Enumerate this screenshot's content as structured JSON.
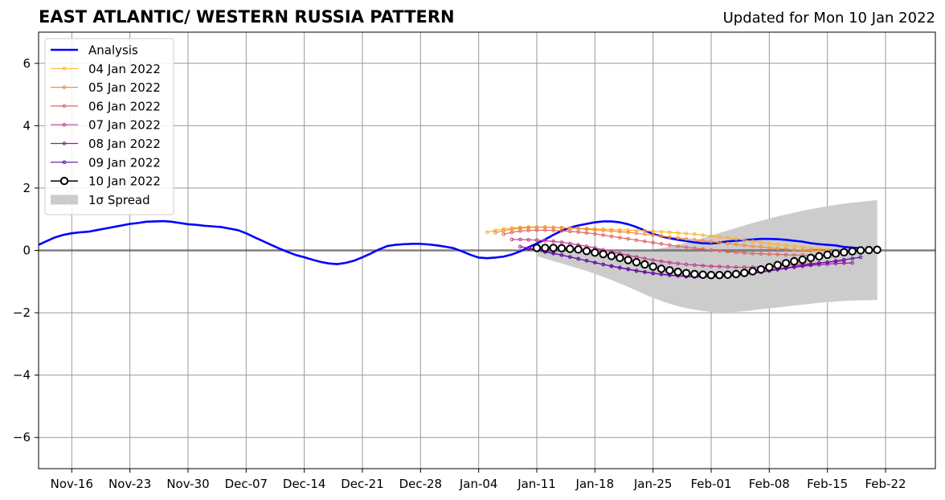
{
  "header": {
    "title": "EAST ATLANTIC/ WESTERN RUSSIA PATTERN",
    "updated": "Updated for Mon 10 Jan 2022"
  },
  "chart_data": {
    "type": "line",
    "x_axis": {
      "range": [
        "2021-11-12",
        "2022-02-28"
      ],
      "ticks": [
        "2021-11-16",
        "2021-11-23",
        "2021-11-30",
        "2021-12-07",
        "2021-12-14",
        "2021-12-21",
        "2021-12-28",
        "2022-01-04",
        "2022-01-11",
        "2022-01-18",
        "2022-01-25",
        "2022-02-01",
        "2022-02-08",
        "2022-02-15",
        "2022-02-22"
      ],
      "tick_labels": [
        "Nov-16",
        "Nov-23",
        "Nov-30",
        "Dec-07",
        "Dec-14",
        "Dec-21",
        "Dec-28",
        "Jan-04",
        "Jan-11",
        "Jan-18",
        "Jan-25",
        "Feb-01",
        "Feb-08",
        "Feb-15",
        "Feb-22"
      ]
    },
    "y_axis": {
      "range": [
        -7,
        7
      ],
      "ticks": [
        -6,
        -4,
        -2,
        0,
        2,
        4,
        6
      ],
      "tick_labels": [
        "−6",
        "−4",
        "−2",
        "0",
        "2",
        "4",
        "6"
      ]
    },
    "grid": true,
    "zero_line": true,
    "legend_position": "top-left",
    "colors": {
      "analysis": "#0000ff",
      "04 Jan 2022": "#fcb428",
      "05 Jan 2022": "#f68a3f",
      "06 Jan 2022": "#e06363",
      "07 Jan 2022": "#c13a86",
      "08 Jan 2022": "#9c17a3",
      "09 Jan 2022": "#5a0fa8",
      "10 Jan 2022": "#000000",
      "spread": "#cccccc",
      "grid": "#999999"
    },
    "analysis": {
      "name": "Analysis",
      "start": "2021-11-12",
      "values": [
        0.18,
        0.3,
        0.42,
        0.5,
        0.55,
        0.58,
        0.6,
        0.65,
        0.7,
        0.75,
        0.8,
        0.85,
        0.88,
        0.92,
        0.93,
        0.94,
        0.92,
        0.88,
        0.84,
        0.82,
        0.79,
        0.77,
        0.75,
        0.7,
        0.65,
        0.55,
        0.42,
        0.3,
        0.18,
        0.06,
        -0.05,
        -0.15,
        -0.22,
        -0.3,
        -0.37,
        -0.42,
        -0.44,
        -0.4,
        -0.33,
        -0.22,
        -0.1,
        0.03,
        0.14,
        0.18,
        0.2,
        0.21,
        0.21,
        0.19,
        0.16,
        0.12,
        0.07,
        -0.03,
        -0.14,
        -0.23,
        -0.25,
        -0.23,
        -0.2,
        -0.13,
        -0.03,
        0.1,
        0.22,
        0.35,
        0.5,
        0.63,
        0.73,
        0.8,
        0.85,
        0.9,
        0.93,
        0.93,
        0.9,
        0.84,
        0.75,
        0.64,
        0.53,
        0.45,
        0.39,
        0.34,
        0.3,
        0.26,
        0.23,
        0.22,
        0.25,
        0.29,
        0.31,
        0.33,
        0.35,
        0.37,
        0.37,
        0.36,
        0.34,
        0.31,
        0.28,
        0.23,
        0.2,
        0.18,
        0.16,
        0.11,
        0.09,
        0.07
      ]
    },
    "forecasts": [
      {
        "name": "04 Jan 2022",
        "start": "2022-01-05",
        "values": [
          0.58,
          0.64,
          0.69,
          0.72,
          0.74,
          0.75,
          0.75,
          0.75,
          0.74,
          0.73,
          0.72,
          0.71,
          0.7,
          0.69,
          0.68,
          0.67,
          0.66,
          0.65,
          0.64,
          0.63,
          0.61,
          0.6,
          0.58,
          0.56,
          0.54,
          0.52,
          0.49,
          0.46,
          0.43,
          0.4,
          0.37,
          0.33,
          0.29,
          0.25,
          0.22,
          0.19,
          0.16,
          0.13,
          0.1,
          0.07,
          0.05,
          0.03
        ]
      },
      {
        "name": "05 Jan 2022",
        "start": "2022-01-06",
        "values": [
          0.57,
          0.63,
          0.68,
          0.71,
          0.73,
          0.74,
          0.74,
          0.73,
          0.72,
          0.71,
          0.7,
          0.68,
          0.66,
          0.64,
          0.62,
          0.6,
          0.58,
          0.55,
          0.52,
          0.49,
          0.46,
          0.43,
          0.4,
          0.37,
          0.34,
          0.31,
          0.28,
          0.25,
          0.22,
          0.19,
          0.16,
          0.13,
          0.11,
          0.08,
          0.06,
          0.04,
          0.02,
          0.01,
          0.0,
          -0.01,
          -0.02
        ]
      },
      {
        "name": "06 Jan 2022",
        "start": "2022-01-07",
        "values": [
          0.52,
          0.58,
          0.62,
          0.64,
          0.65,
          0.65,
          0.64,
          0.63,
          0.61,
          0.59,
          0.56,
          0.53,
          0.49,
          0.45,
          0.41,
          0.37,
          0.33,
          0.29,
          0.25,
          0.21,
          0.17,
          0.13,
          0.1,
          0.07,
          0.04,
          0.01,
          -0.02,
          -0.04,
          -0.06,
          -0.08,
          -0.1,
          -0.11,
          -0.12,
          -0.13,
          -0.14,
          -0.15,
          -0.15,
          -0.16,
          -0.16,
          -0.17,
          -0.17
        ]
      },
      {
        "name": "07 Jan 2022",
        "start": "2022-01-08",
        "values": [
          0.35,
          0.35,
          0.34,
          0.33,
          0.31,
          0.29,
          0.26,
          0.22,
          0.18,
          0.13,
          0.08,
          0.02,
          -0.04,
          -0.1,
          -0.16,
          -0.21,
          -0.26,
          -0.31,
          -0.35,
          -0.39,
          -0.42,
          -0.45,
          -0.47,
          -0.49,
          -0.51,
          -0.52,
          -0.53,
          -0.54,
          -0.54,
          -0.54,
          -0.53,
          -0.52,
          -0.5,
          -0.48,
          -0.46,
          -0.44,
          -0.42,
          -0.4,
          -0.38,
          -0.36,
          -0.34
        ]
      },
      {
        "name": "08 Jan 2022",
        "start": "2022-01-09",
        "values": [
          0.12,
          0.08,
          0.03,
          -0.03,
          -0.09,
          -0.15,
          -0.21,
          -0.27,
          -0.33,
          -0.39,
          -0.45,
          -0.51,
          -0.56,
          -0.61,
          -0.66,
          -0.7,
          -0.74,
          -0.77,
          -0.8,
          -0.82,
          -0.84,
          -0.85,
          -0.85,
          -0.85,
          -0.84,
          -0.82,
          -0.8,
          -0.77,
          -0.74,
          -0.7,
          -0.66,
          -0.62,
          -0.58,
          -0.54,
          -0.51,
          -0.48,
          -0.46,
          -0.44,
          -0.42,
          -0.41,
          -0.4
        ]
      },
      {
        "name": "09 Jan 2022",
        "start": "2022-01-10",
        "values": [
          0.05,
          0.0,
          -0.05,
          -0.1,
          -0.15,
          -0.21,
          -0.27,
          -0.33,
          -0.39,
          -0.45,
          -0.5,
          -0.55,
          -0.6,
          -0.65,
          -0.69,
          -0.73,
          -0.76,
          -0.79,
          -0.81,
          -0.83,
          -0.84,
          -0.84,
          -0.84,
          -0.83,
          -0.81,
          -0.79,
          -0.76,
          -0.72,
          -0.68,
          -0.64,
          -0.6,
          -0.56,
          -0.52,
          -0.48,
          -0.45,
          -0.41,
          -0.38,
          -0.34,
          -0.3,
          -0.26,
          -0.22
        ]
      },
      {
        "name": "10 Jan 2022",
        "start": "2022-01-11",
        "values": [
          0.08,
          0.08,
          0.08,
          0.07,
          0.05,
          0.03,
          -0.02,
          -0.07,
          -0.12,
          -0.18,
          -0.24,
          -0.31,
          -0.38,
          -0.45,
          -0.52,
          -0.59,
          -0.64,
          -0.69,
          -0.73,
          -0.76,
          -0.78,
          -0.79,
          -0.79,
          -0.78,
          -0.76,
          -0.72,
          -0.67,
          -0.61,
          -0.54,
          -0.47,
          -0.41,
          -0.35,
          -0.3,
          -0.24,
          -0.19,
          -0.14,
          -0.1,
          -0.06,
          -0.03,
          0.0,
          0.01,
          0.02
        ]
      }
    ],
    "spread": {
      "name": "1σ Spread",
      "start": "2022-01-11",
      "upper": [
        0.1,
        0.09,
        0.08,
        0.06,
        0.04,
        0.02,
        0.0,
        -0.02,
        -0.03,
        -0.04,
        -0.04,
        -0.03,
        -0.02,
        0.0,
        0.03,
        0.07,
        0.12,
        0.18,
        0.25,
        0.32,
        0.4,
        0.48,
        0.56,
        0.64,
        0.72,
        0.8,
        0.88,
        0.95,
        1.02,
        1.09,
        1.15,
        1.21,
        1.27,
        1.32,
        1.37,
        1.42,
        1.46,
        1.5,
        1.53,
        1.56,
        1.59,
        1.61
      ],
      "lower": [
        -0.18,
        -0.26,
        -0.34,
        -0.42,
        -0.5,
        -0.58,
        -0.66,
        -0.75,
        -0.85,
        -0.95,
        -1.06,
        -1.17,
        -1.29,
        -1.41,
        -1.52,
        -1.62,
        -1.71,
        -1.79,
        -1.85,
        -1.9,
        -1.94,
        -1.97,
        -1.98,
        -1.98,
        -1.97,
        -1.95,
        -1.92,
        -1.89,
        -1.86,
        -1.83,
        -1.8,
        -1.77,
        -1.74,
        -1.71,
        -1.68,
        -1.66,
        -1.64,
        -1.62,
        -1.61,
        -1.6,
        -1.6,
        -1.59
      ]
    }
  }
}
